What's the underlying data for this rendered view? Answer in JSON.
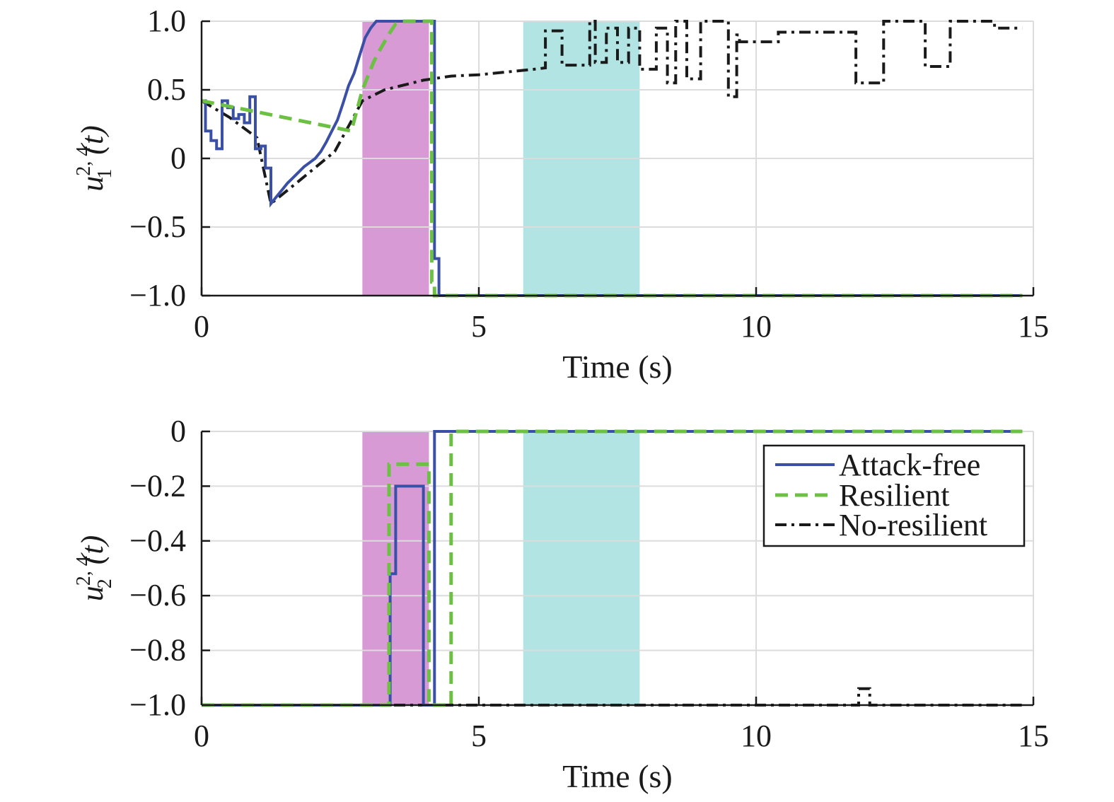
{
  "chart_data": [
    {
      "type": "line",
      "xlabel": "Time (s)",
      "ylabel": {
        "base": "u",
        "sup": "2, 4",
        "sub": "1",
        "arg": "(t)"
      },
      "xlim": [
        0,
        15
      ],
      "ylim": [
        -1.0,
        1.0
      ],
      "xticks": [
        0,
        5,
        10,
        15
      ],
      "xtick_labels": [
        "0",
        "5",
        "10",
        "15"
      ],
      "yticks": [
        -1.0,
        -0.5,
        0,
        0.5,
        1.0
      ],
      "ytick_labels": [
        "−1.0",
        "−0.5",
        "0",
        "0.5",
        "1.0"
      ],
      "grid": true,
      "shaded_regions": [
        {
          "x": [
            2.9,
            4.1
          ],
          "color": "#d89ad4"
        },
        {
          "x": [
            5.8,
            7.9
          ],
          "color": "#b1e4e2"
        }
      ],
      "series": [
        {
          "name": "Attack-free",
          "style": "solid",
          "color": "#3a4fa6",
          "x": [
            0,
            0.07,
            0.07,
            0.17,
            0.17,
            0.27,
            0.27,
            0.37,
            0.37,
            0.47,
            0.47,
            0.57,
            0.57,
            0.67,
            0.67,
            0.77,
            0.77,
            0.87,
            0.87,
            0.97,
            0.97,
            1.07,
            1.07,
            1.15,
            1.15,
            1.25,
            1.25,
            1.35,
            1.45,
            1.55,
            1.65,
            1.75,
            1.85,
            1.95,
            2.05,
            2.15,
            2.25,
            2.35,
            2.45,
            2.55,
            2.65,
            2.75,
            2.85,
            2.95,
            3.05,
            3.15,
            3.25,
            3.35,
            3.45,
            3.55,
            3.65,
            3.8,
            4.0,
            4.2,
            4.2,
            4.28,
            4.28,
            4.4,
            4.4,
            14.8
          ],
          "y": [
            0.42,
            0.42,
            0.2,
            0.2,
            0.13,
            0.13,
            0.07,
            0.07,
            0.42,
            0.42,
            0.37,
            0.37,
            0.29,
            0.29,
            0.32,
            0.32,
            0.26,
            0.26,
            0.45,
            0.45,
            0.07,
            0.07,
            0.09,
            0.09,
            -0.07,
            -0.07,
            -0.33,
            -0.28,
            -0.23,
            -0.18,
            -0.14,
            -0.1,
            -0.06,
            -0.03,
            0.0,
            0.05,
            0.12,
            0.2,
            0.28,
            0.4,
            0.53,
            0.62,
            0.75,
            0.88,
            0.95,
            1.0,
            1.0,
            1.0,
            1.0,
            1.0,
            1.0,
            1.0,
            1.0,
            1.0,
            -0.73,
            -0.73,
            -1.0,
            -1.0,
            -1.0,
            -1.0
          ]
        },
        {
          "name": "Resilient",
          "style": "dashed",
          "color": "#6cc043",
          "x": [
            0,
            2.7,
            2.9,
            3.0,
            3.1,
            3.2,
            3.3,
            3.4,
            3.5,
            3.6,
            3.7,
            3.8,
            4.0,
            4.15,
            4.15,
            4.2,
            4.2,
            14.8
          ],
          "y": [
            0.42,
            0.2,
            0.5,
            0.6,
            0.7,
            0.78,
            0.85,
            0.92,
            0.98,
            1.0,
            1.0,
            1.0,
            1.0,
            1.0,
            -0.9,
            -0.9,
            -1.0,
            -1.0
          ]
        },
        {
          "name": "No-resilient",
          "style": "dashdot",
          "color": "#1a1a1a",
          "x": [
            0,
            0.5,
            1.0,
            1.25,
            1.8,
            2.4,
            2.9,
            3.3,
            4.0,
            4.5,
            5.0,
            5.5,
            6.0,
            6.2,
            6.2,
            6.5,
            6.5,
            7.0,
            7.0,
            7.1,
            7.1,
            7.3,
            7.3,
            7.5,
            7.5,
            7.7,
            7.7,
            7.9,
            7.9,
            8.2,
            8.2,
            8.4,
            8.4,
            8.55,
            8.55,
            8.75,
            8.75,
            9.0,
            9.0,
            9.5,
            9.5,
            9.65,
            9.65,
            9.7,
            9.7,
            10.4,
            10.4,
            11.3,
            11.3,
            11.8,
            11.8,
            12.3,
            12.3,
            13.05,
            13.05,
            13.5,
            13.5,
            14.3,
            14.3,
            14.8
          ],
          "y": [
            0.42,
            0.3,
            0.15,
            -0.33,
            -0.15,
            0.05,
            0.42,
            0.5,
            0.57,
            0.6,
            0.61,
            0.63,
            0.65,
            0.66,
            0.93,
            0.93,
            0.68,
            0.68,
            1.0,
            1.0,
            0.7,
            0.7,
            0.95,
            0.95,
            0.7,
            0.7,
            0.95,
            0.95,
            0.65,
            0.65,
            0.95,
            0.95,
            0.55,
            0.55,
            1.0,
            1.0,
            0.58,
            0.58,
            1.0,
            1.0,
            0.45,
            0.45,
            0.9,
            0.9,
            0.85,
            0.85,
            0.92,
            0.92,
            0.92,
            0.92,
            0.55,
            0.55,
            1.0,
            1.0,
            0.67,
            0.67,
            1.0,
            1.0,
            0.95,
            0.95
          ]
        }
      ]
    },
    {
      "type": "line",
      "xlabel": "Time (s)",
      "ylabel": {
        "base": "u",
        "sup": "2, 4",
        "sub": "2",
        "arg": "(t)"
      },
      "xlim": [
        0,
        15
      ],
      "ylim": [
        -1.0,
        0
      ],
      "xticks": [
        0,
        5,
        10,
        15
      ],
      "xtick_labels": [
        "0",
        "5",
        "10",
        "15"
      ],
      "yticks": [
        -1.0,
        -0.8,
        -0.6,
        -0.4,
        -0.2,
        0
      ],
      "ytick_labels": [
        "−1.0",
        "−0.8",
        "−0.6",
        "−0.4",
        "−0.2",
        "0"
      ],
      "grid": true,
      "legend": {
        "position": "top-right",
        "entries": [
          "Attack-free",
          "Resilient",
          "No-resilient"
        ]
      },
      "shaded_regions": [
        {
          "x": [
            2.9,
            4.1
          ],
          "color": "#d89ad4"
        },
        {
          "x": [
            5.8,
            7.9
          ],
          "color": "#b1e4e2"
        }
      ],
      "series": [
        {
          "name": "Attack-free",
          "style": "solid",
          "color": "#3a4fa6",
          "x": [
            0,
            3.4,
            3.4,
            3.5,
            3.5,
            3.55,
            3.55,
            4.0,
            4.0,
            4.2,
            4.2,
            14.8
          ],
          "y": [
            -1.0,
            -1.0,
            -0.52,
            -0.52,
            -0.2,
            -0.2,
            -0.2,
            -0.2,
            -1.0,
            -1.0,
            0,
            0
          ]
        },
        {
          "name": "Resilient",
          "style": "dashed",
          "color": "#6cc043",
          "x": [
            0,
            3.38,
            3.38,
            3.42,
            3.42,
            4.1,
            4.1,
            4.5,
            4.5,
            4.55,
            4.55,
            14.8
          ],
          "y": [
            -1.0,
            -1.0,
            -0.12,
            -0.12,
            -0.12,
            -0.12,
            -1.0,
            -1.0,
            0,
            0,
            0,
            0
          ]
        },
        {
          "name": "No-resilient",
          "style": "dashdot",
          "color": "#1a1a1a",
          "x": [
            0,
            11.85,
            11.85,
            12.05,
            12.05,
            14.8
          ],
          "y": [
            -1.0,
            -1.0,
            -0.94,
            -0.94,
            -1.0,
            -1.0
          ]
        }
      ]
    }
  ]
}
